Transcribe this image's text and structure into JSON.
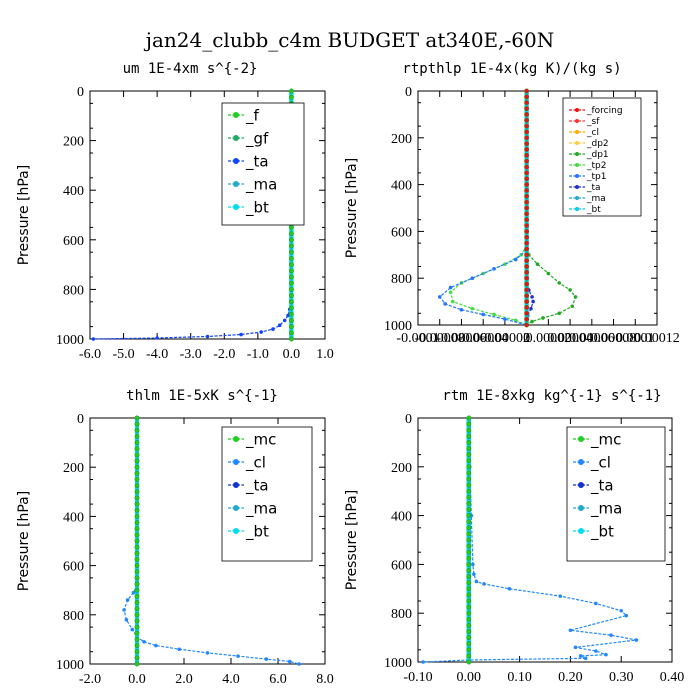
{
  "figure": {
    "title": "jan24_clubb_c4m  BUDGET at340E,-60N"
  },
  "chart_data": [
    {
      "type": "line",
      "title": "um  1E-4xm s^{-2}",
      "ylabel": "Pressure [hPa]",
      "xlim": [
        -6.0,
        1.0
      ],
      "ylim": [
        1000,
        0
      ],
      "xticks": [
        "-6.0",
        "-5.0",
        "-4.0",
        "-3.0",
        "-2.0",
        "-1.0",
        "0.0",
        "1.0"
      ],
      "yticks": [
        "0",
        "200",
        "400",
        "600",
        "800",
        "1000"
      ],
      "legend": {
        "position": "top-right",
        "entries": [
          "_f",
          "_gf",
          "_ta",
          "_ma",
          "_bt"
        ]
      },
      "series": [
        {
          "name": "_f",
          "color": "#22cc22",
          "x": [
            0,
            0
          ],
          "y": [
            0,
            1000
          ]
        },
        {
          "name": "_gf",
          "color": "#22aa66",
          "x": [
            0,
            0
          ],
          "y": [
            0,
            1000
          ]
        },
        {
          "name": "_ta",
          "color": "#1144ff",
          "x": [
            0.0,
            0.0,
            0.0,
            -0.02,
            -0.05,
            -0.1,
            -0.2,
            -0.35,
            -0.55,
            -0.9,
            -1.5,
            -2.5,
            -4.0,
            -5.9
          ],
          "y": [
            0,
            600,
            800,
            850,
            880,
            905,
            925,
            945,
            960,
            972,
            982,
            990,
            996,
            1000
          ]
        },
        {
          "name": "_ma",
          "color": "#22aacc",
          "x": [
            0,
            0
          ],
          "y": [
            0,
            1000
          ]
        },
        {
          "name": "_bt",
          "color": "#00ddee",
          "x": [
            0,
            0
          ],
          "y": [
            0,
            1000
          ]
        }
      ]
    },
    {
      "type": "line",
      "title": "rtpthlp  1E-4x(kg K)/(kg s)",
      "ylabel": "Pressure [hPa]",
      "xlim": [
        -0.0001,
        0.00012
      ],
      "ylim": [
        1000,
        0
      ],
      "xticks": [
        "-0.0001",
        "-0.00008",
        "-0.00006",
        "-0.00004",
        "-0.00002",
        "0",
        "0.00002",
        "0.00004",
        "0.00006",
        "0.00008",
        "0.0001",
        "0.00012"
      ],
      "yticks": [
        "0",
        "200",
        "400",
        "600",
        "800",
        "1000"
      ],
      "legend": {
        "position": "top-right",
        "entries": [
          "_forcing",
          "_sf",
          "_cl",
          "_dp2",
          "_dp1",
          "_tp2",
          "_tp1",
          "_ta",
          "_ma",
          "_bt"
        ]
      },
      "series": [
        {
          "name": "_forcing",
          "color": "#ee1111",
          "x": [
            0,
            0
          ],
          "y": [
            0,
            1000
          ]
        },
        {
          "name": "_sf",
          "color": "#ff3333",
          "x": [
            0,
            0
          ],
          "y": [
            0,
            1000
          ]
        },
        {
          "name": "_dp1",
          "color": "#22aa22",
          "x": [
            0,
            2e-06,
            1e-05,
            2e-05,
            3e-05,
            4e-05,
            4.5e-05,
            4.2e-05,
            3e-05,
            1.5e-05,
            5e-06,
            0.0
          ],
          "y": [
            660,
            700,
            740,
            780,
            820,
            850,
            880,
            920,
            950,
            970,
            985,
            1000
          ]
        },
        {
          "name": "_tp2",
          "color": "#44dd44",
          "x": [
            0,
            -5e-06,
            -2e-05,
            -4e-05,
            -6e-05,
            -7e-05,
            -6.8e-05,
            -5e-05,
            -3e-05,
            -1e-05,
            0
          ],
          "y": [
            660,
            700,
            740,
            780,
            820,
            860,
            900,
            930,
            955,
            980,
            1000
          ]
        },
        {
          "name": "_tp1",
          "color": "#2277ff",
          "x": [
            0,
            -1e-05,
            -3e-05,
            -5e-05,
            -7e-05,
            -8e-05,
            -7.5e-05,
            -6e-05,
            -4e-05,
            -2e-05,
            0
          ],
          "y": [
            680,
            720,
            760,
            800,
            840,
            880,
            910,
            935,
            955,
            975,
            1000
          ]
        },
        {
          "name": "_ta",
          "color": "#2233cc",
          "x": [
            0,
            2e-06,
            5e-06,
            6e-06,
            4e-06,
            1e-06,
            0
          ],
          "y": [
            820,
            850,
            880,
            900,
            930,
            960,
            1000
          ]
        },
        {
          "name": "_bt",
          "color": "#00ccee",
          "x": [
            0,
            0
          ],
          "y": [
            0,
            1000
          ]
        }
      ]
    },
    {
      "type": "line",
      "title": "thlm  1E-5xK s^{-1}",
      "ylabel": "Pressure [hPa]",
      "xlim": [
        -2.0,
        8.0
      ],
      "ylim": [
        1000,
        0
      ],
      "xticks": [
        "-2.0",
        "0.0",
        "2.0",
        "4.0",
        "6.0",
        "8.0"
      ],
      "yticks": [
        "0",
        "200",
        "400",
        "600",
        "800",
        "1000"
      ],
      "legend": {
        "position": "top-right",
        "entries": [
          "_mc",
          "_cl",
          "_ta",
          "_ma",
          "_bt"
        ]
      },
      "series": [
        {
          "name": "_mc",
          "color": "#22cc22",
          "x": [
            0,
            0
          ],
          "y": [
            0,
            1000
          ]
        },
        {
          "name": "_cl",
          "color": "#2288ff",
          "x": [
            0.0,
            0.0,
            -0.15,
            -0.4,
            -0.55,
            -0.45,
            -0.2,
            0.0,
            0.3,
            0.8,
            1.8,
            3.0,
            4.3,
            5.5,
            6.5,
            6.9
          ],
          "y": [
            0,
            680,
            710,
            740,
            780,
            820,
            860,
            890,
            910,
            925,
            940,
            955,
            968,
            980,
            990,
            1000
          ]
        },
        {
          "name": "_ta",
          "color": "#1133cc",
          "x": [
            0,
            0
          ],
          "y": [
            0,
            1000
          ]
        },
        {
          "name": "_ma",
          "color": "#22aacc",
          "x": [
            0,
            0
          ],
          "y": [
            0,
            1000
          ]
        },
        {
          "name": "_bt",
          "color": "#00ddee",
          "x": [
            0,
            0
          ],
          "y": [
            0,
            1000
          ]
        }
      ]
    },
    {
      "type": "line",
      "title": "rtm  1E-8xkg kg^{-1} s^{-1}",
      "ylabel": "Pressure [hPa]",
      "xlim": [
        -0.1,
        0.4
      ],
      "ylim": [
        1000,
        0
      ],
      "xticks": [
        "-0.10",
        "0.00",
        "0.10",
        "0.20",
        "0.30",
        "0.40"
      ],
      "yticks": [
        "0",
        "200",
        "400",
        "600",
        "800",
        "1000"
      ],
      "legend": {
        "position": "top-right",
        "entries": [
          "_mc",
          "_cl",
          "_ta",
          "_ma",
          "_bt"
        ]
      },
      "series": [
        {
          "name": "_mc",
          "color": "#22cc22",
          "x": [
            0,
            0
          ],
          "y": [
            0,
            1000
          ]
        },
        {
          "name": "_cl",
          "color": "#2288ff",
          "x": [
            0.0,
            0.002,
            0.005,
            0.008,
            0.01,
            0.015,
            0.03,
            0.08,
            0.18,
            0.25,
            0.3,
            0.31,
            0.2,
            0.28,
            0.33,
            0.21,
            0.25,
            0.27,
            0.22,
            0.23,
            0.0,
            -0.09
          ],
          "y": [
            0,
            200,
            400,
            600,
            640,
            670,
            680,
            700,
            730,
            760,
            790,
            810,
            870,
            890,
            910,
            940,
            955,
            970,
            975,
            985,
            992,
            1000
          ]
        },
        {
          "name": "_ta",
          "color": "#1133cc",
          "x": [
            0,
            0
          ],
          "y": [
            0,
            1000
          ]
        },
        {
          "name": "_ma",
          "color": "#22aacc",
          "x": [
            0,
            0
          ],
          "y": [
            0,
            1000
          ]
        },
        {
          "name": "_bt",
          "color": "#00ddee",
          "x": [
            0,
            0
          ],
          "y": [
            0,
            1000
          ]
        }
      ]
    }
  ]
}
